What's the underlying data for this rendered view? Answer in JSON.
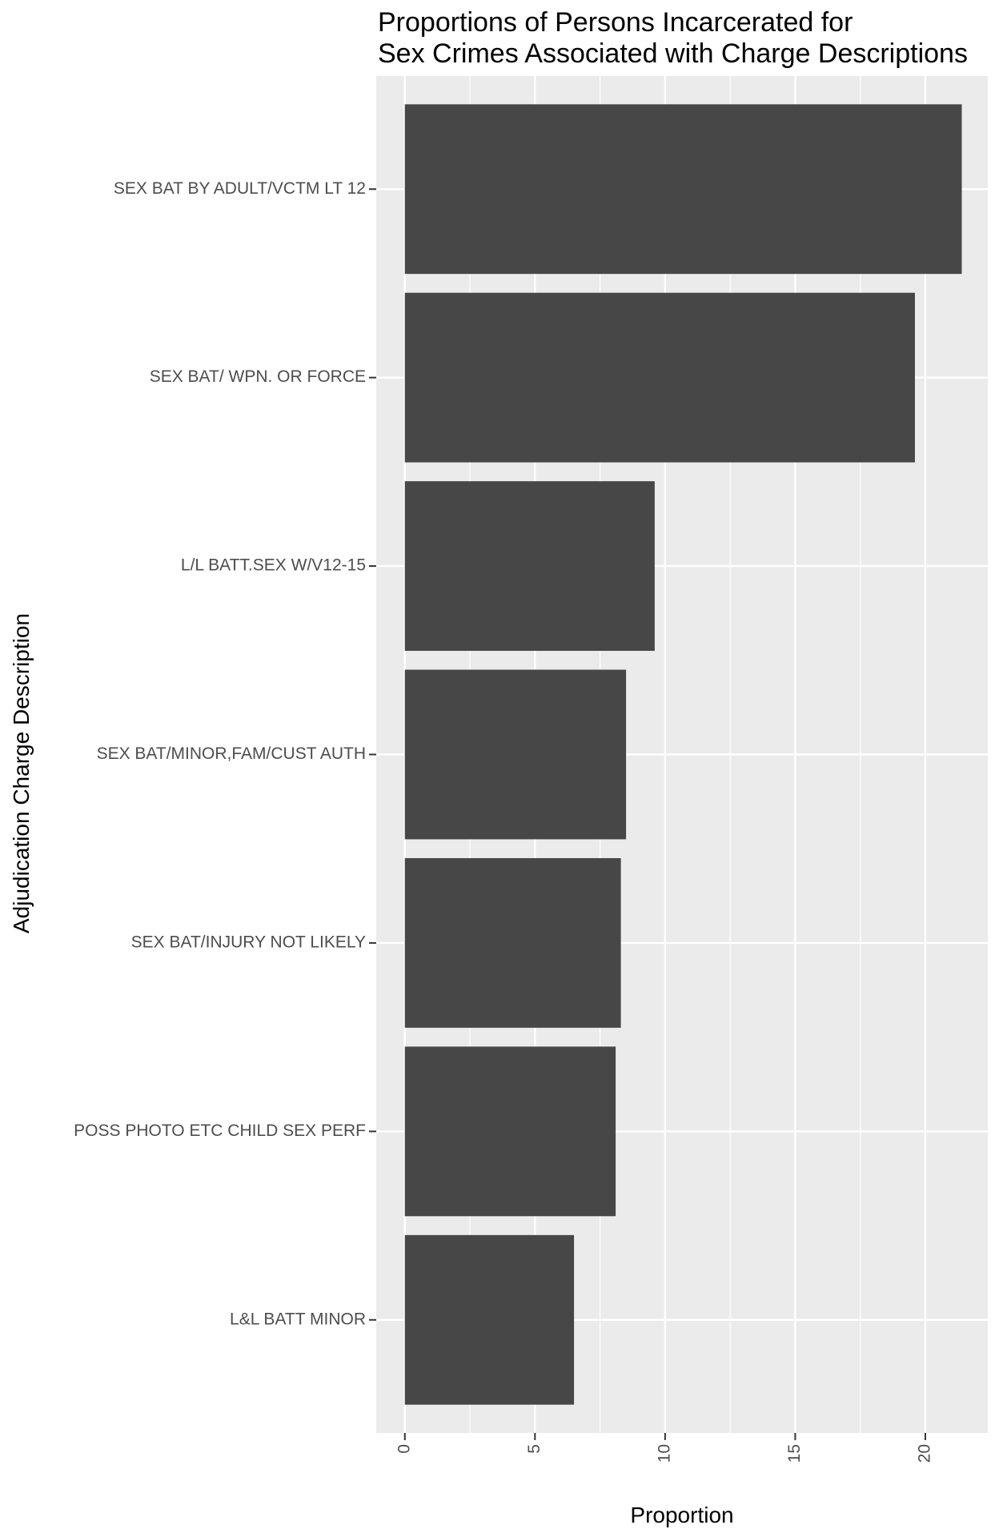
{
  "chart_data": {
    "type": "bar",
    "orientation": "horizontal",
    "title": "Proportions of Persons Incarcerated for Sex Crimes Associated with Charge Descriptions",
    "title_lines": [
      "Proportions of Persons Incarcerated for",
      "Sex Crimes Associated with Charge Descriptions"
    ],
    "xlabel": "Proportion",
    "ylabel": "Adjudication Charge Description",
    "categories": [
      "SEX BAT BY ADULT/VCTM LT 12",
      "SEX BAT/ WPN. OR FORCE",
      "L/L BATT.SEX W/V12-15",
      "SEX BAT/MINOR,FAM/CUST AUTH",
      "SEX BAT/INJURY NOT LIKELY",
      "POSS PHOTO ETC CHILD SEX PERF",
      "L&L BATT MINOR"
    ],
    "values": [
      21.4,
      19.6,
      9.6,
      8.5,
      8.3,
      8.1,
      6.5
    ],
    "xlim": [
      -1.1,
      22.4
    ],
    "x_ticks": [
      0,
      5,
      10,
      15,
      20
    ],
    "x_tick_labels": [
      "0",
      "5",
      "10",
      "15",
      "20"
    ],
    "grid": true,
    "legend": "none",
    "colors": {
      "panel_background": "#ebebeb",
      "grid_line": "#ffffff",
      "bar_fill": "#474747",
      "tick_text": "#4d4d4d",
      "title_text": "#000000"
    }
  }
}
